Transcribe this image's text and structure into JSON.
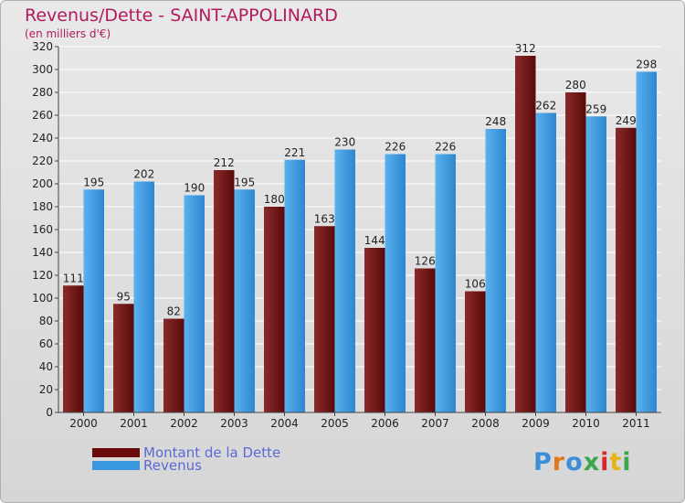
{
  "title": "Revenus/Dette - SAINT-APPOLINARD",
  "subtitle": "(en milliers d'€)",
  "colors": {
    "title": "#b2195e",
    "dette": "#7a1a1a",
    "revenus": "#4aa6e8",
    "legend_text": "#5a6ad6"
  },
  "legend": [
    {
      "label": "Montant de la Dette",
      "color": "#6b0b0b"
    },
    {
      "label": "Revenus",
      "color": "#3a98e0"
    }
  ],
  "logo": {
    "text": "Proxiti",
    "letter_colors": [
      "#3a8fd8",
      "#e07a1a",
      "#3a8fd8",
      "#3aa84a",
      "#d62a2a",
      "#e8b21a",
      "#3aa84a"
    ]
  },
  "chart_data": {
    "type": "bar",
    "categories": [
      "2000",
      "2001",
      "2002",
      "2003",
      "2004",
      "2005",
      "2006",
      "2007",
      "2008",
      "2009",
      "2010",
      "2011"
    ],
    "series": [
      {
        "name": "Montant de la Dette",
        "values": [
          111,
          95,
          82,
          212,
          180,
          163,
          144,
          126,
          106,
          312,
          280,
          249
        ]
      },
      {
        "name": "Revenus",
        "values": [
          195,
          202,
          190,
          195,
          221,
          230,
          226,
          226,
          248,
          262,
          259,
          298
        ]
      }
    ],
    "ylim": [
      0,
      320
    ],
    "yticks": [
      0,
      20,
      40,
      60,
      80,
      100,
      120,
      140,
      160,
      180,
      200,
      220,
      240,
      260,
      280,
      300,
      320
    ],
    "grid": true,
    "data_labels": true
  }
}
